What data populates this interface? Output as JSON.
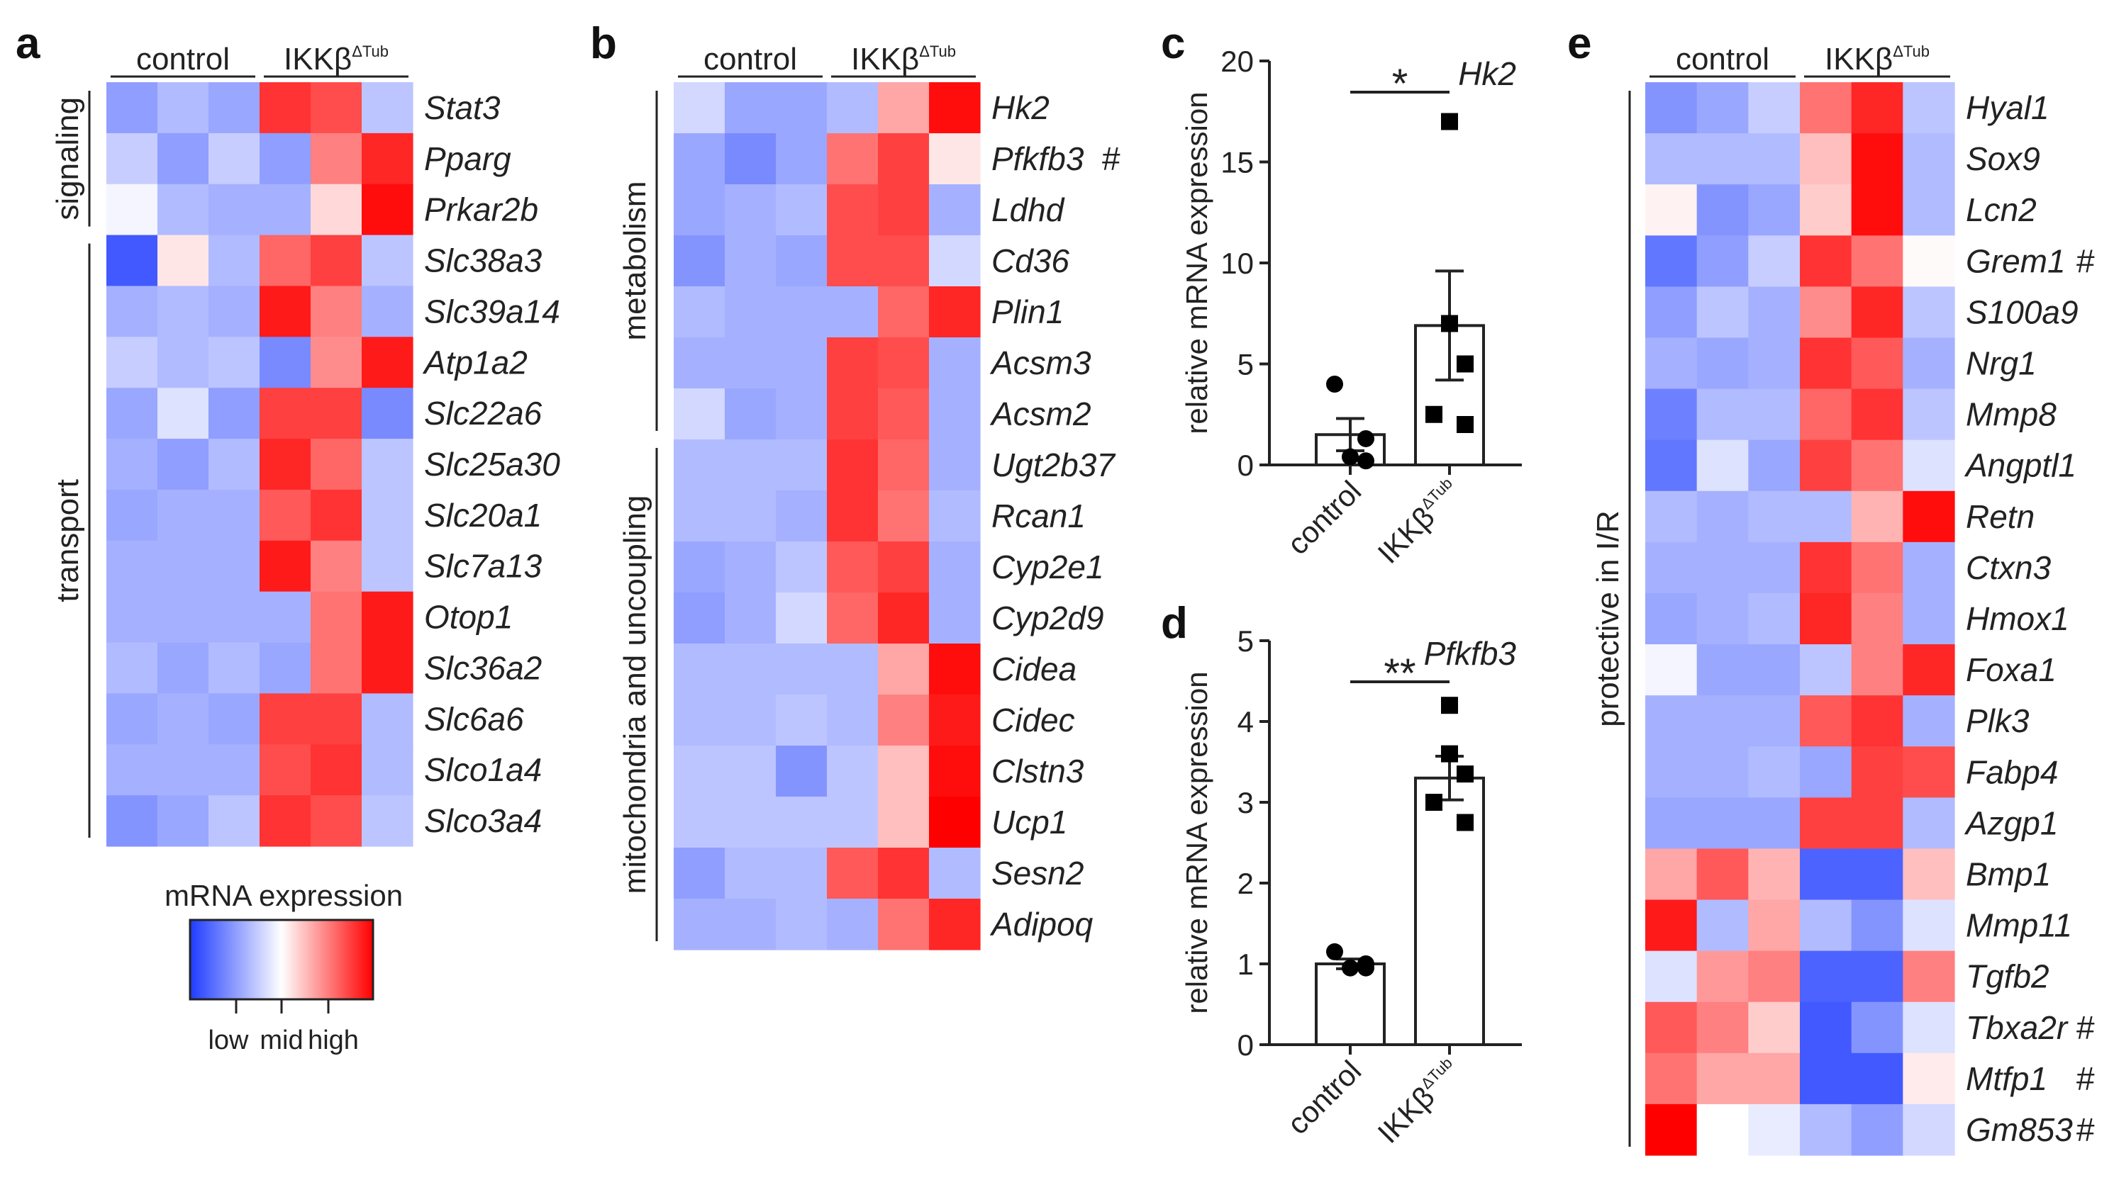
{
  "chart_data": [
    {
      "type": "heatmap",
      "panel": "a",
      "groups": [
        {
          "label": "control"
        },
        {
          "label": "IKKβ",
          "superscript": "ΔTub"
        }
      ],
      "categories": [
        {
          "label": "signaling",
          "genes": [
            "Stat3",
            "Pparg",
            "Prkar2b"
          ]
        },
        {
          "label": "transport",
          "genes": [
            "Slc38a3",
            "Slc39a14",
            "Atp1a2",
            "Slc22a6",
            "Slc25a30",
            "Slc20a1",
            "Slc7a13",
            "Otop1",
            "Slc36a2",
            "Slc6a6",
            "Slco1a4",
            "Slco3a4"
          ]
        }
      ],
      "rows": [
        {
          "gene": "Stat3",
          "mark": "",
          "values": [
            -0.5,
            -0.35,
            -0.45,
            0.8,
            0.7,
            -0.3
          ]
        },
        {
          "gene": "Pparg",
          "mark": "",
          "values": [
            -0.25,
            -0.5,
            -0.25,
            -0.5,
            0.5,
            0.85
          ]
        },
        {
          "gene": "Prkar2b",
          "mark": "",
          "values": [
            -0.05,
            -0.35,
            -0.4,
            -0.4,
            0.15,
            0.95
          ]
        },
        {
          "gene": "Slc38a3",
          "mark": "",
          "values": [
            -0.85,
            0.1,
            -0.35,
            0.6,
            0.75,
            -0.3
          ]
        },
        {
          "gene": "Slc39a14",
          "mark": "",
          "values": [
            -0.4,
            -0.35,
            -0.4,
            0.9,
            0.5,
            -0.4
          ]
        },
        {
          "gene": "Atp1a2",
          "mark": "",
          "values": [
            -0.25,
            -0.35,
            -0.3,
            -0.6,
            0.45,
            0.9
          ]
        },
        {
          "gene": "Slc22a6",
          "mark": "",
          "values": [
            -0.45,
            -0.15,
            -0.5,
            0.75,
            0.75,
            -0.6
          ]
        },
        {
          "gene": "Slc25a30",
          "mark": "",
          "values": [
            -0.4,
            -0.5,
            -0.35,
            0.85,
            0.6,
            -0.3
          ]
        },
        {
          "gene": "Slc20a1",
          "mark": "",
          "values": [
            -0.45,
            -0.4,
            -0.4,
            0.65,
            0.8,
            -0.3
          ]
        },
        {
          "gene": "Slc7a13",
          "mark": "",
          "values": [
            -0.4,
            -0.4,
            -0.4,
            0.9,
            0.5,
            -0.3
          ]
        },
        {
          "gene": "Otop1",
          "mark": "",
          "values": [
            -0.4,
            -0.4,
            -0.4,
            -0.4,
            0.55,
            0.9
          ]
        },
        {
          "gene": "Slc36a2",
          "mark": "",
          "values": [
            -0.35,
            -0.45,
            -0.35,
            -0.45,
            0.55,
            0.9
          ]
        },
        {
          "gene": "Slc6a6",
          "mark": "",
          "values": [
            -0.45,
            -0.4,
            -0.45,
            0.75,
            0.75,
            -0.35
          ]
        },
        {
          "gene": "Slco1a4",
          "mark": "",
          "values": [
            -0.4,
            -0.4,
            -0.4,
            0.7,
            0.8,
            -0.35
          ]
        },
        {
          "gene": "Slco3a4",
          "mark": "",
          "values": [
            -0.55,
            -0.45,
            -0.3,
            0.8,
            0.7,
            -0.3
          ]
        }
      ]
    },
    {
      "type": "heatmap",
      "panel": "b",
      "groups": [
        {
          "label": "control"
        },
        {
          "label": "IKKβ",
          "superscript": "ΔTub"
        }
      ],
      "categories": [
        {
          "label": "metabolism",
          "genes": [
            "Hk2",
            "Pfkfb3",
            "Ldhd",
            "Cd36",
            "Plin1",
            "Acsm3",
            "Acsm2"
          ]
        },
        {
          "label": "mitochondria and uncoupling",
          "genes": [
            "Ugt2b37",
            "Rcan1",
            "Cyp2e1",
            "Cyp2d9",
            "Cidea",
            "Cidec",
            "Clstn3",
            "Ucp1",
            "Sesn2",
            "Adipoq"
          ]
        }
      ],
      "rows": [
        {
          "gene": "Hk2",
          "mark": "",
          "values": [
            -0.2,
            -0.45,
            -0.45,
            -0.35,
            0.35,
            0.95
          ]
        },
        {
          "gene": "Pfkfb3",
          "mark": "#",
          "values": [
            -0.45,
            -0.6,
            -0.45,
            0.55,
            0.75,
            0.1
          ]
        },
        {
          "gene": "Ldhd",
          "mark": "",
          "values": [
            -0.45,
            -0.4,
            -0.35,
            0.7,
            0.75,
            -0.4
          ]
        },
        {
          "gene": "Cd36",
          "mark": "",
          "values": [
            -0.55,
            -0.4,
            -0.45,
            0.7,
            0.7,
            -0.2
          ]
        },
        {
          "gene": "Plin1",
          "mark": "",
          "values": [
            -0.35,
            -0.4,
            -0.4,
            -0.4,
            0.6,
            0.85
          ]
        },
        {
          "gene": "Acsm3",
          "mark": "",
          "values": [
            -0.4,
            -0.4,
            -0.4,
            0.75,
            0.7,
            -0.4
          ]
        },
        {
          "gene": "Acsm2",
          "mark": "",
          "values": [
            -0.2,
            -0.45,
            -0.4,
            0.75,
            0.65,
            -0.4
          ]
        },
        {
          "gene": "Ugt2b37",
          "mark": "",
          "values": [
            -0.35,
            -0.35,
            -0.35,
            0.8,
            0.6,
            -0.4
          ]
        },
        {
          "gene": "Rcan1",
          "mark": "",
          "values": [
            -0.35,
            -0.35,
            -0.4,
            0.8,
            0.55,
            -0.35
          ]
        },
        {
          "gene": "Cyp2e1",
          "mark": "",
          "values": [
            -0.45,
            -0.4,
            -0.3,
            0.65,
            0.75,
            -0.4
          ]
        },
        {
          "gene": "Cyp2d9",
          "mark": "",
          "values": [
            -0.5,
            -0.4,
            -0.2,
            0.6,
            0.85,
            -0.4
          ]
        },
        {
          "gene": "Cidea",
          "mark": "",
          "values": [
            -0.35,
            -0.35,
            -0.35,
            -0.35,
            0.35,
            0.95
          ]
        },
        {
          "gene": "Cidec",
          "mark": "",
          "values": [
            -0.35,
            -0.35,
            -0.3,
            -0.35,
            0.5,
            0.9
          ]
        },
        {
          "gene": "Clstn3",
          "mark": "",
          "values": [
            -0.3,
            -0.3,
            -0.55,
            -0.3,
            0.25,
            0.95
          ]
        },
        {
          "gene": "Ucp1",
          "mark": "",
          "values": [
            -0.3,
            -0.3,
            -0.3,
            -0.3,
            0.25,
            1.0
          ]
        },
        {
          "gene": "Sesn2",
          "mark": "",
          "values": [
            -0.5,
            -0.35,
            -0.35,
            0.65,
            0.8,
            -0.35
          ]
        },
        {
          "gene": "Adipoq",
          "mark": "",
          "values": [
            -0.4,
            -0.4,
            -0.35,
            -0.4,
            0.55,
            0.85
          ]
        }
      ]
    },
    {
      "type": "bar",
      "panel": "c",
      "gene": "Hk2",
      "ylabel": "relative mRNA expression",
      "ylim": [
        0,
        20
      ],
      "yticks": [
        0,
        5,
        10,
        15,
        20
      ],
      "significance": "*",
      "categories": [
        {
          "label": "control",
          "superscript": "",
          "mean": 1.5,
          "sem": 0.8,
          "marker": "circle",
          "points": [
            4.0,
            1.3,
            0.4,
            0.2
          ]
        },
        {
          "label": "IKKβ",
          "superscript": "ΔTub",
          "mean": 6.9,
          "sem": 2.7,
          "marker": "square",
          "points": [
            17.0,
            7.0,
            5.0,
            2.5,
            2.0
          ]
        }
      ]
    },
    {
      "type": "bar",
      "panel": "d",
      "gene": "Pfkfb3",
      "ylabel": "relative mRNA expression",
      "ylim": [
        0,
        5
      ],
      "yticks": [
        0,
        1,
        2,
        3,
        4,
        5
      ],
      "significance": "**",
      "categories": [
        {
          "label": "control",
          "superscript": "",
          "mean": 1.0,
          "sem": 0.06,
          "marker": "circle",
          "points": [
            1.15,
            1.0,
            0.95,
            0.95
          ]
        },
        {
          "label": "IKKβ",
          "superscript": "ΔTub",
          "mean": 3.3,
          "sem": 0.27,
          "marker": "square",
          "points": [
            4.2,
            3.6,
            3.35,
            3.0,
            2.75
          ]
        }
      ]
    },
    {
      "type": "heatmap",
      "panel": "e",
      "groups": [
        {
          "label": "control"
        },
        {
          "label": "IKKβ",
          "superscript": "ΔTub"
        }
      ],
      "categories": [
        {
          "label": "protective in I/R",
          "genes": [
            "Hyal1",
            "Sox9",
            "Lcn2",
            "Grem1",
            "S100a9",
            "Nrg1",
            "Mmp8",
            "Angptl1",
            "Retn",
            "Ctxn3",
            "Hmox1",
            "Foxa1",
            "Plk3",
            "Fabp4",
            "Azgp1",
            "Bmp1",
            "Mmp11",
            "Tgfb2",
            "Tbxa2r",
            "Mtfp1",
            "Gm853"
          ]
        }
      ],
      "rows": [
        {
          "gene": "Hyal1",
          "mark": "",
          "values": [
            -0.55,
            -0.45,
            -0.25,
            0.55,
            0.85,
            -0.3
          ]
        },
        {
          "gene": "Sox9",
          "mark": "",
          "values": [
            -0.35,
            -0.35,
            -0.35,
            0.25,
            0.95,
            -0.35
          ]
        },
        {
          "gene": "Lcn2",
          "mark": "",
          "values": [
            0.05,
            -0.55,
            -0.45,
            0.2,
            0.95,
            -0.35
          ]
        },
        {
          "gene": "Grem1",
          "mark": "#",
          "values": [
            -0.7,
            -0.5,
            -0.25,
            0.8,
            0.55,
            0.02
          ]
        },
        {
          "gene": "S100a9",
          "mark": "",
          "values": [
            -0.5,
            -0.3,
            -0.4,
            0.45,
            0.85,
            -0.3
          ]
        },
        {
          "gene": "Nrg1",
          "mark": "",
          "values": [
            -0.4,
            -0.45,
            -0.4,
            0.8,
            0.65,
            -0.4
          ]
        },
        {
          "gene": "Mmp8",
          "mark": "",
          "values": [
            -0.65,
            -0.35,
            -0.35,
            0.6,
            0.8,
            -0.3
          ]
        },
        {
          "gene": "Angptl1",
          "mark": "",
          "values": [
            -0.7,
            -0.15,
            -0.45,
            0.75,
            0.55,
            -0.15
          ]
        },
        {
          "gene": "Retn",
          "mark": "",
          "values": [
            -0.35,
            -0.4,
            -0.35,
            -0.35,
            0.3,
            0.95
          ]
        },
        {
          "gene": "Ctxn3",
          "mark": "",
          "values": [
            -0.4,
            -0.4,
            -0.4,
            0.8,
            0.55,
            -0.4
          ]
        },
        {
          "gene": "Hmox1",
          "mark": "",
          "values": [
            -0.45,
            -0.4,
            -0.35,
            0.85,
            0.5,
            -0.4
          ]
        },
        {
          "gene": "Foxa1",
          "mark": "",
          "values": [
            -0.05,
            -0.45,
            -0.45,
            -0.3,
            0.5,
            0.85
          ]
        },
        {
          "gene": "Plk3",
          "mark": "",
          "values": [
            -0.4,
            -0.4,
            -0.4,
            0.65,
            0.8,
            -0.4
          ]
        },
        {
          "gene": "Fabp4",
          "mark": "",
          "values": [
            -0.4,
            -0.4,
            -0.35,
            -0.45,
            0.75,
            0.7
          ]
        },
        {
          "gene": "Azgp1",
          "mark": "",
          "values": [
            -0.45,
            -0.45,
            -0.45,
            0.75,
            0.75,
            -0.35
          ]
        },
        {
          "gene": "Bmp1",
          "mark": "",
          "values": [
            0.35,
            0.65,
            0.3,
            -0.8,
            -0.8,
            0.25
          ]
        },
        {
          "gene": "Mmp11",
          "mark": "",
          "values": [
            0.9,
            -0.35,
            0.35,
            -0.35,
            -0.55,
            -0.15
          ]
        },
        {
          "gene": "Tgfb2",
          "mark": "",
          "values": [
            -0.15,
            0.4,
            0.5,
            -0.8,
            -0.8,
            0.5
          ]
        },
        {
          "gene": "Tbxa2r",
          "mark": "#",
          "values": [
            0.65,
            0.5,
            0.2,
            -0.85,
            -0.55,
            -0.15
          ]
        },
        {
          "gene": "Mtfp1",
          "mark": "#",
          "values": [
            0.55,
            0.35,
            0.35,
            -0.85,
            -0.85,
            0.08
          ]
        },
        {
          "gene": "Gm853",
          "mark": "#",
          "values": [
            1.0,
            0.0,
            -0.1,
            -0.35,
            -0.5,
            -0.2
          ]
        }
      ]
    }
  ],
  "legend": {
    "title": "mRNA expression",
    "tick_labels": [
      "low",
      "mid",
      "high"
    ],
    "colors": {
      "low": "#1f3cff",
      "mid": "#ffffff",
      "high": "#ff0000"
    }
  }
}
